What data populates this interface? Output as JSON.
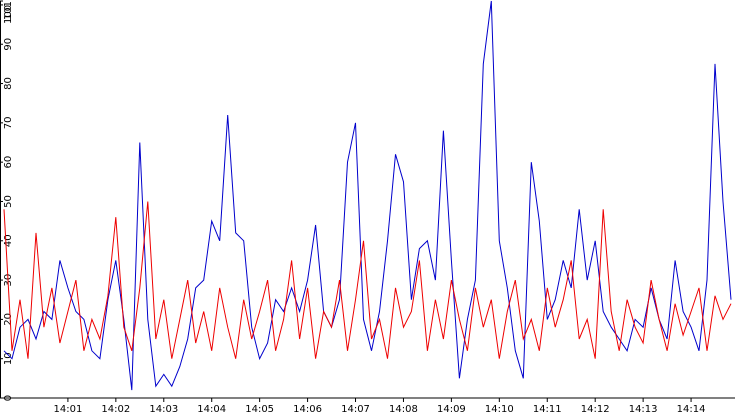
{
  "chart_data": {
    "type": "line",
    "categories": [
      null,
      null,
      null,
      null,
      null,
      null,
      null,
      null,
      "14:01",
      null,
      null,
      null,
      null,
      null,
      "14:02",
      null,
      null,
      null,
      null,
      null,
      "14:03",
      null,
      null,
      null,
      null,
      null,
      "14:04",
      null,
      null,
      null,
      null,
      null,
      "14:05",
      null,
      null,
      null,
      null,
      null,
      "14:06",
      null,
      null,
      null,
      null,
      null,
      "14:07",
      null,
      null,
      null,
      null,
      null,
      "14:08",
      null,
      null,
      null,
      null,
      null,
      "14:09",
      null,
      null,
      null,
      null,
      null,
      "14:10",
      null,
      null,
      null,
      null,
      null,
      "14:11",
      null,
      null,
      null,
      null,
      null,
      "14:12",
      null,
      null,
      null,
      null,
      null,
      "14:13",
      null,
      null,
      null,
      null,
      null,
      "14:14",
      null,
      null,
      null,
      null,
      null
    ],
    "series": [
      {
        "color": "#0000cc",
        "values": [
          12,
          10,
          18,
          20,
          15,
          22,
          20,
          35,
          28,
          22,
          20,
          12,
          10,
          25,
          35,
          20,
          2,
          65,
          20,
          3,
          6,
          3,
          8,
          15,
          28,
          30,
          45,
          40,
          72,
          42,
          40,
          18,
          10,
          14,
          25,
          22,
          28,
          22,
          30,
          44,
          22,
          18,
          25,
          60,
          70,
          20,
          12,
          22,
          40,
          62,
          55,
          25,
          38,
          40,
          30,
          68,
          35,
          5,
          20,
          30,
          85,
          101,
          40,
          28,
          12,
          5,
          60,
          45,
          20,
          25,
          35,
          28,
          48,
          30,
          40,
          22,
          18,
          15,
          12,
          20,
          18,
          28,
          20,
          15,
          35,
          22,
          18,
          12,
          30,
          85,
          50,
          25
        ]
      },
      {
        "color": "#ee0000",
        "values": [
          48,
          12,
          25,
          10,
          42,
          18,
          28,
          14,
          22,
          30,
          12,
          20,
          15,
          26,
          46,
          18,
          12,
          28,
          50,
          15,
          25,
          10,
          20,
          30,
          14,
          22,
          12,
          28,
          18,
          10,
          25,
          15,
          22,
          30,
          12,
          20,
          35,
          15,
          28,
          10,
          22,
          18,
          30,
          12,
          25,
          40,
          15,
          20,
          10,
          28,
          18,
          22,
          35,
          12,
          25,
          15,
          30,
          20,
          12,
          28,
          18,
          25,
          10,
          22,
          30,
          15,
          20,
          12,
          28,
          18,
          25,
          35,
          15,
          20,
          10,
          48,
          22,
          12,
          25,
          18,
          14,
          30,
          20,
          12,
          24,
          16,
          22,
          28,
          12,
          26,
          20,
          24
        ]
      }
    ],
    "ylim": [
      0,
      101
    ],
    "yticks": [
      0,
      10,
      20,
      30,
      40,
      50,
      60,
      70,
      80,
      90,
      100,
      101
    ]
  }
}
